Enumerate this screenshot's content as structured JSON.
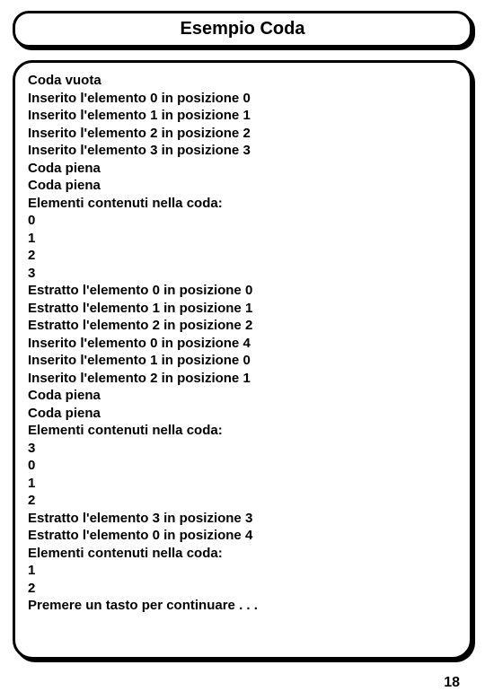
{
  "title": "Esempio Coda",
  "lines": [
    "Coda vuota",
    "Inserito l'elemento 0 in posizione 0",
    "Inserito l'elemento 1 in posizione 1",
    "Inserito l'elemento 2 in posizione 2",
    "Inserito l'elemento 3 in posizione 3",
    "Coda piena",
    "Coda piena",
    "Elementi contenuti nella coda:",
    "0",
    "1",
    "2",
    "3",
    "Estratto l'elemento 0 in posizione 0",
    "Estratto l'elemento 1 in posizione 1",
    "Estratto l'elemento 2 in posizione 2",
    "Inserito l'elemento 0 in posizione 4",
    "Inserito l'elemento 1 in posizione 0",
    "Inserito l'elemento 2 in posizione 1",
    "Coda piena",
    "Coda piena",
    "Elementi contenuti nella coda:",
    "3",
    "0",
    "1",
    "2",
    "Estratto l'elemento 3 in posizione 3",
    "Estratto l'elemento 0 in posizione 4",
    "Elementi contenuti nella coda:",
    "1",
    "2",
    "Premere un tasto per continuare . . ."
  ],
  "pageNumber": "18"
}
